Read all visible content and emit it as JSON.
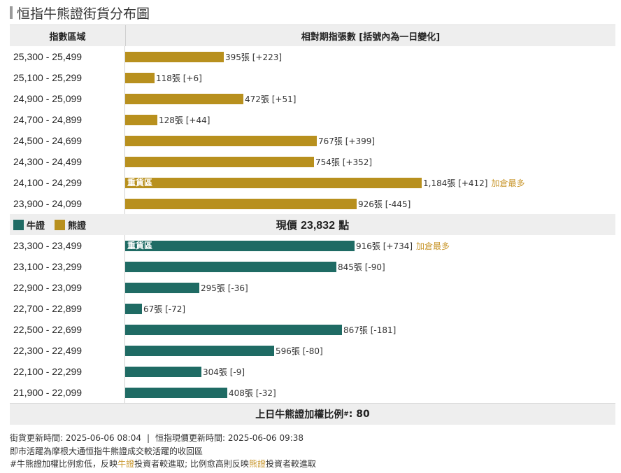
{
  "title": "恒指牛熊證街貨分布圖",
  "header": {
    "col1": "指數區域",
    "col2": "相對期指張數 [括號內為一日變化]"
  },
  "legend": {
    "bull": "牛證",
    "bear": "熊證",
    "bull_color": "#1f6b64",
    "bear_color": "#b8901e"
  },
  "current_price": {
    "label": "現價",
    "value": "23,832",
    "unit": "點"
  },
  "heavy_label": "重貨區",
  "max_add_label": "加倉最多",
  "ratio": {
    "label": "上日牛熊證加權比例",
    "mark": "#",
    "value": ": 80"
  },
  "notes": {
    "update_time": "街貨更新時間: 2025-06-06 08:04",
    "sep": "|",
    "price_time": "恒指現價更新時間: 2025-06-06 09:38",
    "line2": "即市活躍為摩根大通恒指牛熊證成交較活躍的收回區",
    "line3_a": "#牛熊證加權比例愈低，反映",
    "line3_b": "牛證",
    "line3_c": "投資者較進取; 比例愈高則反映",
    "line3_d": "熊證",
    "line3_e": "投資者較進取"
  },
  "chart_data": {
    "type": "bar",
    "orientation": "horizontal",
    "xlim": [
      0,
      1300
    ],
    "bear": [
      {
        "range": "25,300 - 25,499",
        "value": 395,
        "label": "395張 [+223]",
        "heavy": false,
        "most_added": false
      },
      {
        "range": "25,100 - 25,299",
        "value": 118,
        "label": "118張 [+6]",
        "heavy": false,
        "most_added": false
      },
      {
        "range": "24,900 - 25,099",
        "value": 472,
        "label": "472張 [+51]",
        "heavy": false,
        "most_added": false
      },
      {
        "range": "24,700 - 24,899",
        "value": 128,
        "label": "128張 [+44]",
        "heavy": false,
        "most_added": false
      },
      {
        "range": "24,500 - 24,699",
        "value": 767,
        "label": "767張 [+399]",
        "heavy": false,
        "most_added": false
      },
      {
        "range": "24,300 - 24,499",
        "value": 754,
        "label": "754張 [+352]",
        "heavy": false,
        "most_added": false
      },
      {
        "range": "24,100 - 24,299",
        "value": 1184,
        "label": "1,184張 [+412]",
        "heavy": true,
        "most_added": true
      },
      {
        "range": "23,900 - 24,099",
        "value": 926,
        "label": "926張 [-445]",
        "heavy": false,
        "most_added": false
      }
    ],
    "bull": [
      {
        "range": "23,300 - 23,499",
        "value": 916,
        "label": "916張 [+734]",
        "heavy": true,
        "most_added": true
      },
      {
        "range": "23,100 - 23,299",
        "value": 845,
        "label": "845張 [-90]",
        "heavy": false,
        "most_added": false
      },
      {
        "range": "22,900 - 23,099",
        "value": 295,
        "label": "295張 [-36]",
        "heavy": false,
        "most_added": false
      },
      {
        "range": "22,700 - 22,899",
        "value": 67,
        "label": "67張 [-72]",
        "heavy": false,
        "most_added": false
      },
      {
        "range": "22,500 - 22,699",
        "value": 867,
        "label": "867張 [-181]",
        "heavy": false,
        "most_added": false
      },
      {
        "range": "22,300 - 22,499",
        "value": 596,
        "label": "596張 [-80]",
        "heavy": false,
        "most_added": false
      },
      {
        "range": "22,100 - 22,299",
        "value": 304,
        "label": "304張 [-9]",
        "heavy": false,
        "most_added": false
      },
      {
        "range": "21,900 - 22,099",
        "value": 408,
        "label": "408張 [-32]",
        "heavy": false,
        "most_added": false
      }
    ]
  }
}
